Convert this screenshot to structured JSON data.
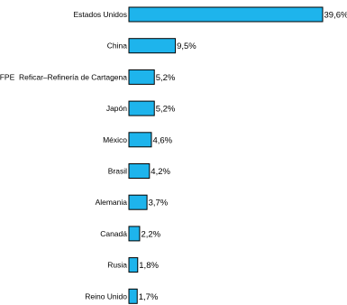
{
  "chart_data": {
    "type": "bar",
    "orientation": "horizontal",
    "categories": [
      "Estados Unidos",
      "China",
      "ZFPE  Reficar–Refinería de Cartagena",
      "Japón",
      "México",
      "Brasil",
      "Alemania",
      "Canadá",
      "Rusia",
      "Reino Unido"
    ],
    "values": [
      39.6,
      9.5,
      5.2,
      5.2,
      4.6,
      4.2,
      3.7,
      2.2,
      1.8,
      1.7
    ],
    "value_labels": [
      "39,6%",
      "9,5%",
      "5,2%",
      "5,2%",
      "4,6%",
      "4,2%",
      "3,7%",
      "2,2%",
      "1,8%",
      "1,7%"
    ],
    "title": "",
    "xlabel": "",
    "ylabel": "",
    "xlim": [
      0,
      39.6
    ],
    "grid": false,
    "legend": "none",
    "bar_color": "#1eb4ec",
    "edge_color": "#000000"
  }
}
